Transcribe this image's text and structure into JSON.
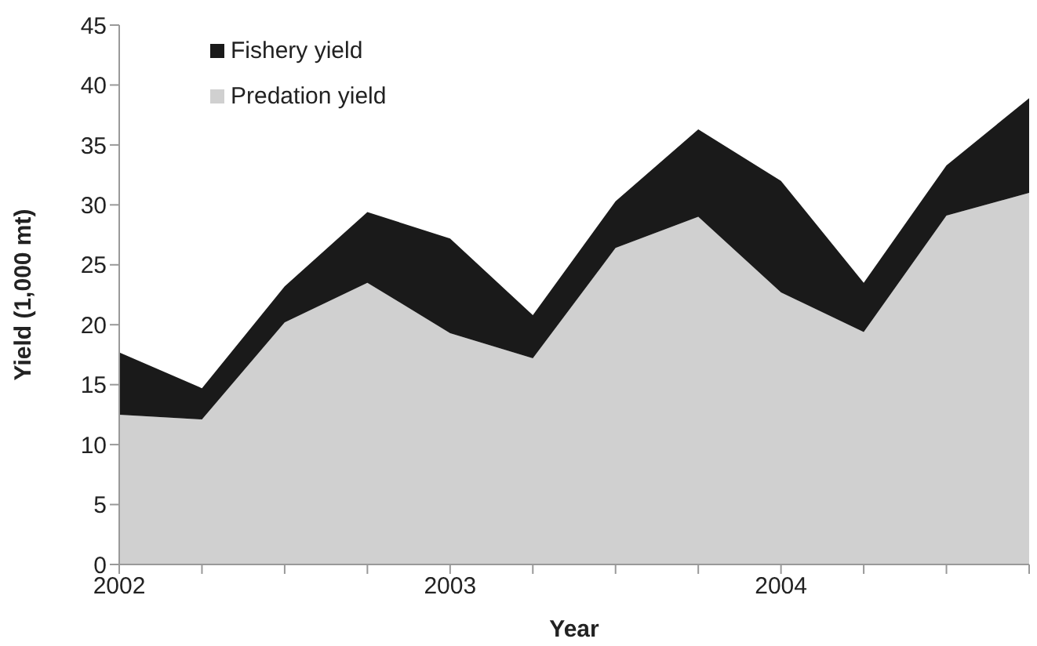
{
  "chart_data": {
    "type": "area",
    "stacked": true,
    "xlabel": "Year",
    "ylabel": "Yield (1,000 mt)",
    "x": [
      2002,
      2002.25,
      2002.5,
      2002.75,
      2003,
      2003.25,
      2003.5,
      2003.75,
      2004,
      2004.25,
      2004.5,
      2004.75
    ],
    "xlim": [
      2002,
      2004.75
    ],
    "xticks": [
      2002,
      {
        "value": 2002.25,
        "label": null
      },
      {
        "value": 2002.5,
        "label": null
      },
      {
        "value": 2002.75,
        "label": null
      },
      2003,
      {
        "value": 2003.25,
        "label": null
      },
      {
        "value": 2003.5,
        "label": null
      },
      {
        "value": 2003.75,
        "label": null
      },
      2004,
      {
        "value": 2004.25,
        "label": null
      },
      {
        "value": 2004.5,
        "label": null
      },
      {
        "value": 2004.75,
        "label": null
      }
    ],
    "ylim": [
      0,
      45
    ],
    "yticks": [
      0,
      5,
      10,
      15,
      20,
      25,
      30,
      35,
      40,
      45
    ],
    "grid": false,
    "legend": "top left",
    "series": [
      {
        "name": "Predation yield",
        "color": "#d0d0d0",
        "values": [
          12.5,
          12.1,
          20.2,
          23.5,
          19.3,
          17.2,
          26.4,
          29.0,
          22.7,
          19.4,
          29.1,
          31.0
        ]
      },
      {
        "name": "Fishery yield",
        "color": "#1a1a1a",
        "values": [
          5.2,
          2.6,
          3.0,
          5.9,
          7.9,
          3.6,
          3.9,
          7.3,
          9.3,
          4.1,
          4.2,
          7.9
        ]
      }
    ]
  }
}
